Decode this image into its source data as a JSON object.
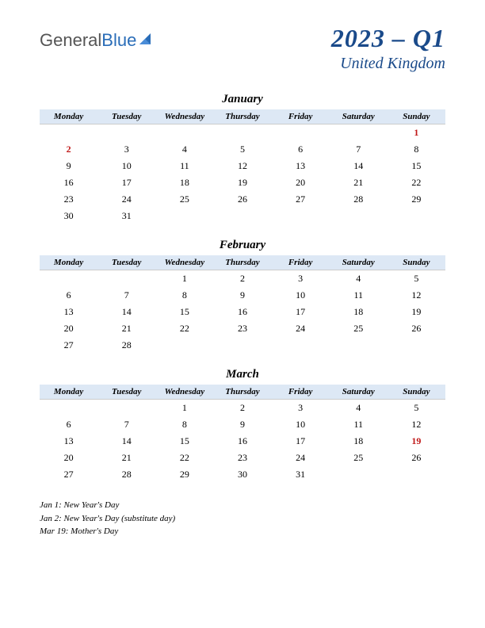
{
  "logo": {
    "general": "General",
    "blue": "Blue"
  },
  "title": {
    "main": "2023 – Q1",
    "sub": "United Kingdom"
  },
  "weekdays": [
    "Monday",
    "Tuesday",
    "Wednesday",
    "Thursday",
    "Friday",
    "Saturday",
    "Sunday"
  ],
  "colors": {
    "header_bg": "#dde8f5",
    "title_color": "#1a4a8a",
    "holiday_color": "#c01818",
    "logo_blue": "#2a6db8"
  },
  "months": [
    {
      "name": "January",
      "weeks": [
        [
          null,
          null,
          null,
          null,
          null,
          null,
          {
            "d": 1,
            "h": true
          }
        ],
        [
          {
            "d": 2,
            "h": true
          },
          {
            "d": 3
          },
          {
            "d": 4
          },
          {
            "d": 5
          },
          {
            "d": 6
          },
          {
            "d": 7
          },
          {
            "d": 8
          }
        ],
        [
          {
            "d": 9
          },
          {
            "d": 10
          },
          {
            "d": 11
          },
          {
            "d": 12
          },
          {
            "d": 13
          },
          {
            "d": 14
          },
          {
            "d": 15
          }
        ],
        [
          {
            "d": 16
          },
          {
            "d": 17
          },
          {
            "d": 18
          },
          {
            "d": 19
          },
          {
            "d": 20
          },
          {
            "d": 21
          },
          {
            "d": 22
          }
        ],
        [
          {
            "d": 23
          },
          {
            "d": 24
          },
          {
            "d": 25
          },
          {
            "d": 26
          },
          {
            "d": 27
          },
          {
            "d": 28
          },
          {
            "d": 29
          }
        ],
        [
          {
            "d": 30
          },
          {
            "d": 31
          },
          null,
          null,
          null,
          null,
          null
        ]
      ]
    },
    {
      "name": "February",
      "weeks": [
        [
          null,
          null,
          {
            "d": 1
          },
          {
            "d": 2
          },
          {
            "d": 3
          },
          {
            "d": 4
          },
          {
            "d": 5
          }
        ],
        [
          {
            "d": 6
          },
          {
            "d": 7
          },
          {
            "d": 8
          },
          {
            "d": 9
          },
          {
            "d": 10
          },
          {
            "d": 11
          },
          {
            "d": 12
          }
        ],
        [
          {
            "d": 13
          },
          {
            "d": 14
          },
          {
            "d": 15
          },
          {
            "d": 16
          },
          {
            "d": 17
          },
          {
            "d": 18
          },
          {
            "d": 19
          }
        ],
        [
          {
            "d": 20
          },
          {
            "d": 21
          },
          {
            "d": 22
          },
          {
            "d": 23
          },
          {
            "d": 24
          },
          {
            "d": 25
          },
          {
            "d": 26
          }
        ],
        [
          {
            "d": 27
          },
          {
            "d": 28
          },
          null,
          null,
          null,
          null,
          null
        ]
      ]
    },
    {
      "name": "March",
      "weeks": [
        [
          null,
          null,
          {
            "d": 1
          },
          {
            "d": 2
          },
          {
            "d": 3
          },
          {
            "d": 4
          },
          {
            "d": 5
          }
        ],
        [
          {
            "d": 6
          },
          {
            "d": 7
          },
          {
            "d": 8
          },
          {
            "d": 9
          },
          {
            "d": 10
          },
          {
            "d": 11
          },
          {
            "d": 12
          }
        ],
        [
          {
            "d": 13
          },
          {
            "d": 14
          },
          {
            "d": 15
          },
          {
            "d": 16
          },
          {
            "d": 17
          },
          {
            "d": 18
          },
          {
            "d": 19,
            "h": true
          }
        ],
        [
          {
            "d": 20
          },
          {
            "d": 21
          },
          {
            "d": 22
          },
          {
            "d": 23
          },
          {
            "d": 24
          },
          {
            "d": 25
          },
          {
            "d": 26
          }
        ],
        [
          {
            "d": 27
          },
          {
            "d": 28
          },
          {
            "d": 29
          },
          {
            "d": 30
          },
          {
            "d": 31
          },
          null,
          null
        ]
      ]
    }
  ],
  "holidays": [
    "Jan 1: New Year's Day",
    "Jan 2: New Year's Day (substitute day)",
    "Mar 19: Mother's Day"
  ]
}
